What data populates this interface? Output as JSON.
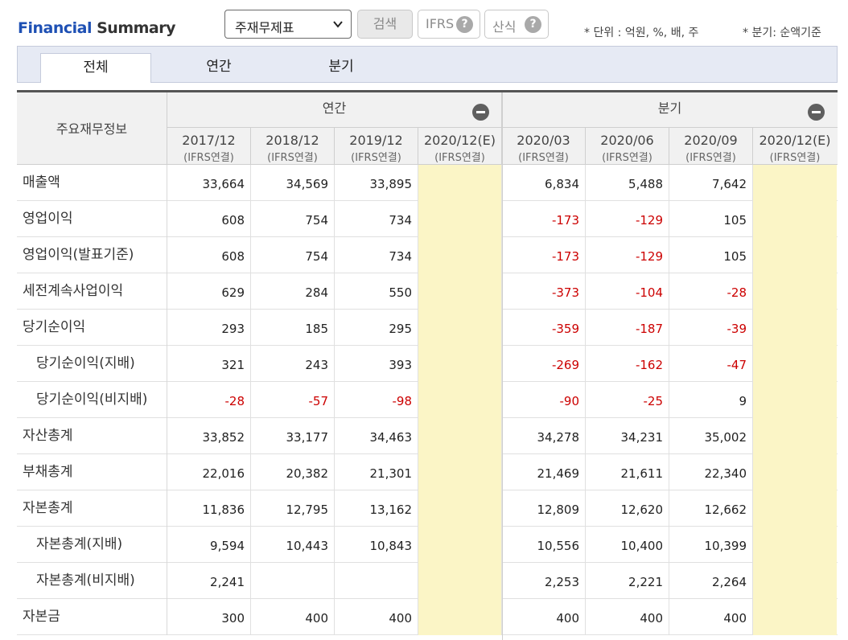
{
  "header": {
    "title_blue": "Financial",
    "title_dark": "Summary",
    "select_value": "주재무제표",
    "search_label": "검색",
    "ifrs_label": "IFRS",
    "formula_label": "산식",
    "help_glyph": "?",
    "unit_note": "* 단위 : 억원, %, 배, 주",
    "quarter_note": "* 분기: 순액기준"
  },
  "tabs": [
    {
      "label": "전체",
      "active": true
    },
    {
      "label": "연간",
      "active": false
    },
    {
      "label": "분기",
      "active": false
    }
  ],
  "table": {
    "corner_label": "주요재무정보",
    "groups": [
      {
        "label": "연간"
      },
      {
        "label": "분기"
      }
    ],
    "periods": [
      {
        "date": "2017/12",
        "sub": "(IFRS연결)"
      },
      {
        "date": "2018/12",
        "sub": "(IFRS연결)"
      },
      {
        "date": "2019/12",
        "sub": "(IFRS연결)"
      },
      {
        "date": "2020/12(E)",
        "sub": "(IFRS연결)"
      },
      {
        "date": "2020/03",
        "sub": "(IFRS연결)"
      },
      {
        "date": "2020/06",
        "sub": "(IFRS연결)"
      },
      {
        "date": "2020/09",
        "sub": "(IFRS연결)"
      },
      {
        "date": "2020/12(E)",
        "sub": "(IFRS연결)"
      }
    ],
    "rows": [
      {
        "label": "매출액",
        "sub": false,
        "values": [
          "33,664",
          "34,569",
          "33,895",
          "",
          "6,834",
          "5,488",
          "7,642",
          ""
        ]
      },
      {
        "label": "영업이익",
        "sub": false,
        "values": [
          "608",
          "754",
          "734",
          "",
          "-173",
          "-129",
          "105",
          ""
        ]
      },
      {
        "label": "영업이익(발표기준)",
        "sub": false,
        "values": [
          "608",
          "754",
          "734",
          "",
          "-173",
          "-129",
          "105",
          ""
        ]
      },
      {
        "label": "세전계속사업이익",
        "sub": false,
        "values": [
          "629",
          "284",
          "550",
          "",
          "-373",
          "-104",
          "-28",
          ""
        ]
      },
      {
        "label": "당기순이익",
        "sub": false,
        "values": [
          "293",
          "185",
          "295",
          "",
          "-359",
          "-187",
          "-39",
          ""
        ]
      },
      {
        "label": "당기순이익(지배)",
        "sub": true,
        "values": [
          "321",
          "243",
          "393",
          "",
          "-269",
          "-162",
          "-47",
          ""
        ]
      },
      {
        "label": "당기순이익(비지배)",
        "sub": true,
        "values": [
          "-28",
          "-57",
          "-98",
          "",
          "-90",
          "-25",
          "9",
          ""
        ]
      },
      {
        "label": "자산총계",
        "sub": false,
        "values": [
          "33,852",
          "33,177",
          "34,463",
          "",
          "34,278",
          "34,231",
          "35,002",
          ""
        ]
      },
      {
        "label": "부채총계",
        "sub": false,
        "values": [
          "22,016",
          "20,382",
          "21,301",
          "",
          "21,469",
          "21,611",
          "22,340",
          ""
        ]
      },
      {
        "label": "자본총계",
        "sub": false,
        "values": [
          "11,836",
          "12,795",
          "13,162",
          "",
          "12,809",
          "12,620",
          "12,662",
          ""
        ]
      },
      {
        "label": "자본총계(지배)",
        "sub": true,
        "values": [
          "9,594",
          "10,443",
          "10,843",
          "",
          "10,556",
          "10,400",
          "10,399",
          ""
        ]
      },
      {
        "label": "자본총계(비지배)",
        "sub": true,
        "values": [
          "2,241",
          "",
          "",
          "",
          "2,253",
          "2,221",
          "2,264",
          ""
        ]
      },
      {
        "label": "자본금",
        "sub": false,
        "values": [
          "300",
          "400",
          "400",
          "",
          "400",
          "400",
          "400",
          ""
        ]
      }
    ]
  },
  "colors": {
    "title_blue": "#1e50b4",
    "negative": "#cc0000",
    "estimate_bg": "#fbf5c6",
    "tab_bg": "#e6eaf4"
  }
}
